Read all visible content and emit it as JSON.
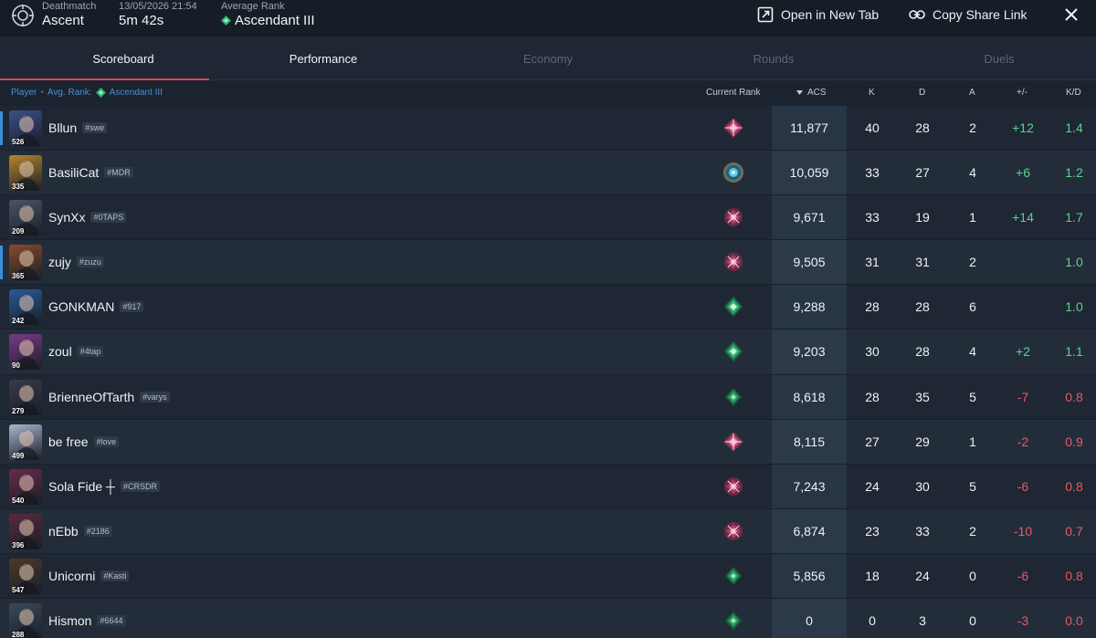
{
  "header": {
    "mode_label": "Deathmatch",
    "map": "Ascent",
    "date": "13/05/2026 21:54",
    "duration": "5m 42s",
    "avg_rank_label": "Average Rank",
    "avg_rank": "Ascendant III",
    "open_tab_label": "Open in New Tab",
    "copy_link_label": "Copy Share Link"
  },
  "tabs": [
    {
      "label": "Scoreboard",
      "state": "active"
    },
    {
      "label": "Performance",
      "state": "highlight"
    },
    {
      "label": "Economy",
      "state": "disabled"
    },
    {
      "label": "Rounds",
      "state": "disabled"
    },
    {
      "label": "Duels",
      "state": "disabled"
    }
  ],
  "columns": {
    "player": "Player",
    "avg_rank_prefix": "Avg. Rank:",
    "avg_rank": "Ascendant III",
    "current_rank": "Current Rank",
    "acs": "ACS",
    "k": "K",
    "d": "D",
    "a": "A",
    "pm": "+/-",
    "kd": "K/D"
  },
  "players": [
    {
      "name": "Bllun",
      "tag": "#swe",
      "level": "526",
      "acs": "11,877",
      "k": "40",
      "d": "28",
      "a": "2",
      "pm": "+12",
      "kd": "1.4",
      "rank": "immortal",
      "color": "#3d4e8a"
    },
    {
      "name": "BasiliCat",
      "tag": "#MDR",
      "level": "335",
      "acs": "10,059",
      "k": "33",
      "d": "27",
      "a": "4",
      "pm": "+6",
      "kd": "1.2",
      "rank": "radiant",
      "color": "#b8862a"
    },
    {
      "name": "SynXx",
      "tag": "#0TAPS",
      "level": "209",
      "acs": "9,671",
      "k": "33",
      "d": "19",
      "a": "1",
      "pm": "+14",
      "kd": "1.7",
      "rank": "immortal-low",
      "color": "#4a5566"
    },
    {
      "name": "zujy",
      "tag": "#zuzu",
      "level": "365",
      "acs": "9,505",
      "k": "31",
      "d": "31",
      "a": "2",
      "pm": "",
      "kd": "1.0",
      "rank": "immortal-low",
      "color": "#8a4a2a"
    },
    {
      "name": "GONKMAN",
      "tag": "#917",
      "level": "242",
      "acs": "9,288",
      "k": "28",
      "d": "28",
      "a": "6",
      "pm": "",
      "kd": "1.0",
      "rank": "ascendant",
      "color": "#2a5a9a"
    },
    {
      "name": "zoul",
      "tag": "#4tap",
      "level": "90",
      "acs": "9,203",
      "k": "30",
      "d": "28",
      "a": "4",
      "pm": "+2",
      "kd": "1.1",
      "rank": "ascendant",
      "color": "#7a3a8a"
    },
    {
      "name": "BrienneOfTarth",
      "tag": "#varys",
      "level": "279",
      "acs": "8,618",
      "k": "28",
      "d": "35",
      "a": "5",
      "pm": "-7",
      "kd": "0.8",
      "rank": "ascendant-low",
      "color": "#3a3a4a"
    },
    {
      "name": "be free",
      "tag": "#love",
      "level": "499",
      "acs": "8,115",
      "k": "27",
      "d": "29",
      "a": "1",
      "pm": "-2",
      "kd": "0.9",
      "rank": "immortal",
      "color": "#aab6d0"
    },
    {
      "name": "Sola Fide ┼",
      "tag": "#CRSDR",
      "level": "540",
      "acs": "7,243",
      "k": "24",
      "d": "30",
      "a": "5",
      "pm": "-6",
      "kd": "0.8",
      "rank": "immortal-low",
      "color": "#6a2a4a"
    },
    {
      "name": "nEbb",
      "tag": "#2186",
      "level": "396",
      "acs": "6,874",
      "k": "23",
      "d": "33",
      "a": "2",
      "pm": "-10",
      "kd": "0.7",
      "rank": "immortal-low",
      "color": "#5a2a3a"
    },
    {
      "name": "Unicorni",
      "tag": "#Kasti",
      "level": "547",
      "acs": "5,856",
      "k": "18",
      "d": "24",
      "a": "0",
      "pm": "-6",
      "kd": "0.8",
      "rank": "ascendant-low",
      "color": "#4a3a2a"
    },
    {
      "name": "Hismon",
      "tag": "#6644",
      "level": "288",
      "acs": "0",
      "k": "0",
      "d": "3",
      "a": "0",
      "pm": "-3",
      "kd": "0.0",
      "rank": "ascendant-low",
      "color": "#3a4a5a"
    }
  ]
}
